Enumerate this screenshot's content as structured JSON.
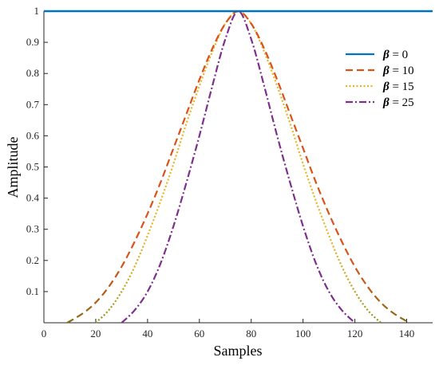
{
  "chart_data": {
    "type": "line",
    "title": "",
    "xlabel": "Samples",
    "ylabel": "Amplitude",
    "xlim": [
      0,
      150
    ],
    "ylim": [
      0,
      1
    ],
    "xticks": [
      0,
      20,
      40,
      60,
      80,
      100,
      120,
      140
    ],
    "yticks": [
      0.1,
      0.2,
      0.3,
      0.4,
      0.5,
      0.6,
      0.7,
      0.8,
      0.9,
      1
    ],
    "xtick_labels": [
      "0",
      "20",
      "40",
      "60",
      "80",
      "100",
      "120",
      "140"
    ],
    "ytick_labels": [
      "0.1",
      "0.2",
      "0.3",
      "0.4",
      "0.5",
      "0.6",
      "0.7",
      "0.8",
      "0.9",
      "1"
    ],
    "grid": false,
    "legend_position": "top-right",
    "series": [
      {
        "name": "β = 0",
        "legend_symbol": "β",
        "legend_value": "= 0",
        "color": "#0072bd",
        "style": "solid",
        "x": [
          0,
          150
        ],
        "y": [
          1,
          1
        ]
      },
      {
        "name": "β = 10",
        "legend_symbol": "β",
        "legend_value": "= 10",
        "color": "#d95319",
        "style": "dashed",
        "gradient_colors": [
          "#d95319",
          "#7e6e16"
        ],
        "x": [
          9,
          15,
          20,
          25,
          30,
          35,
          40,
          45,
          50,
          55,
          60,
          65,
          70,
          75,
          80,
          85,
          90,
          95,
          100,
          105,
          110,
          115,
          120,
          125,
          130,
          135,
          141
        ],
        "y": [
          0.0,
          0.03,
          0.065,
          0.115,
          0.18,
          0.26,
          0.35,
          0.45,
          0.56,
          0.67,
          0.78,
          0.88,
          0.96,
          1.0,
          0.96,
          0.88,
          0.78,
          0.67,
          0.56,
          0.45,
          0.35,
          0.26,
          0.18,
          0.115,
          0.065,
          0.03,
          0.0
        ]
      },
      {
        "name": "β = 15",
        "legend_symbol": "β",
        "legend_value": "= 15",
        "color": "#edb120",
        "style": "dotted",
        "gradient_colors": [
          "#edb120",
          "#8a8f1a"
        ],
        "x": [
          20,
          25,
          30,
          35,
          40,
          45,
          50,
          55,
          60,
          65,
          70,
          75,
          80,
          85,
          90,
          95,
          100,
          105,
          110,
          115,
          120,
          125,
          130
        ],
        "y": [
          0.0,
          0.04,
          0.1,
          0.18,
          0.28,
          0.39,
          0.51,
          0.64,
          0.76,
          0.87,
          0.96,
          1.0,
          0.96,
          0.87,
          0.76,
          0.64,
          0.51,
          0.39,
          0.28,
          0.18,
          0.1,
          0.04,
          0.0
        ]
      },
      {
        "name": "β = 25",
        "legend_symbol": "β",
        "legend_value": "= 25",
        "color": "#7e2f8e",
        "style": "dashdot",
        "x": [
          30,
          35,
          40,
          45,
          50,
          55,
          60,
          65,
          70,
          75,
          80,
          85,
          90,
          95,
          100,
          105,
          110,
          115,
          120
        ],
        "y": [
          0.0,
          0.04,
          0.1,
          0.19,
          0.31,
          0.45,
          0.6,
          0.76,
          0.91,
          1.0,
          0.91,
          0.76,
          0.6,
          0.45,
          0.31,
          0.19,
          0.1,
          0.04,
          0.0
        ]
      }
    ]
  }
}
